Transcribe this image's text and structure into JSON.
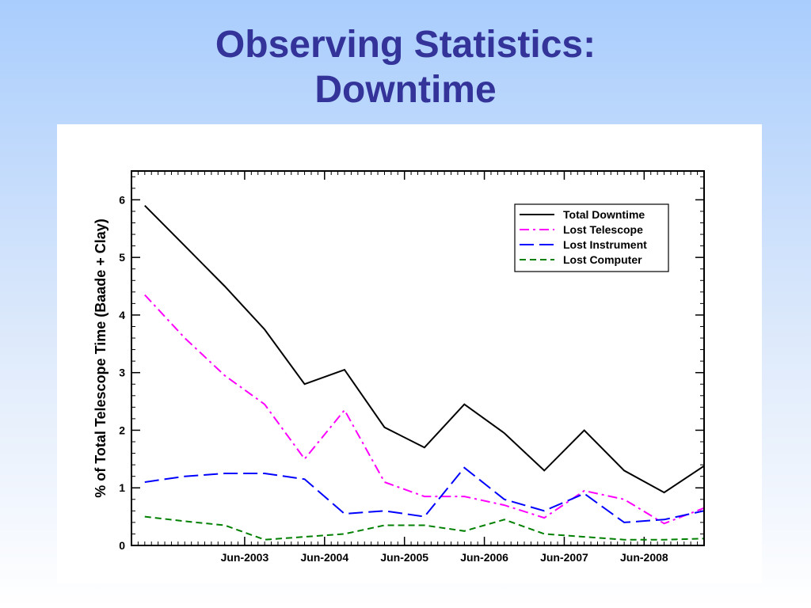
{
  "slide": {
    "title_line1": "Observing Statistics:",
    "title_line2": "Downtime",
    "title_color": "#333399"
  },
  "chart_data": {
    "type": "line",
    "title": "",
    "xlabel": "",
    "ylabel": "% of Total Telescope Time (Baade + Clay)",
    "ylim": [
      0,
      6.5
    ],
    "yticks": [
      0,
      1,
      2,
      3,
      4,
      5,
      6
    ],
    "xticks": [
      "Jun-2003",
      "Jun-2004",
      "Jun-2005",
      "Jun-2006",
      "Jun-2007",
      "Jun-2008"
    ],
    "xlim": [
      "2002-01",
      "2009-03"
    ],
    "legend_position": "top-right",
    "grid": false,
    "x": [
      "2002-03",
      "2002-09",
      "2003-03",
      "2003-09",
      "2004-03",
      "2004-09",
      "2005-03",
      "2005-09",
      "2006-03",
      "2006-09",
      "2007-03",
      "2007-09",
      "2008-03",
      "2008-09",
      "2009-03"
    ],
    "series": [
      {
        "name": "Total Downtime",
        "color": "#000000",
        "dash": "solid",
        "values": [
          5.9,
          5.2,
          4.5,
          3.75,
          2.8,
          3.05,
          2.05,
          1.7,
          2.45,
          1.95,
          1.3,
          2.0,
          1.3,
          0.92,
          1.38
        ]
      },
      {
        "name": "Lost Telescope",
        "color": "#ff00ff",
        "dash": "dashdot",
        "values": [
          4.35,
          3.6,
          2.95,
          2.45,
          1.5,
          2.35,
          1.1,
          0.85,
          0.85,
          0.7,
          0.48,
          0.95,
          0.8,
          0.38,
          0.65
        ]
      },
      {
        "name": "Lost Instrument",
        "color": "#0000ff",
        "dash": "longdash",
        "values": [
          1.1,
          1.2,
          1.25,
          1.25,
          1.15,
          0.55,
          0.6,
          0.5,
          1.35,
          0.8,
          0.6,
          0.9,
          0.4,
          0.45,
          0.6
        ]
      },
      {
        "name": "Lost Computer",
        "color": "#008000",
        "dash": "dash",
        "values": [
          0.5,
          0.42,
          0.35,
          0.1,
          0.15,
          0.2,
          0.35,
          0.35,
          0.25,
          0.45,
          0.2,
          0.15,
          0.1,
          0.1,
          0.12
        ]
      }
    ]
  }
}
